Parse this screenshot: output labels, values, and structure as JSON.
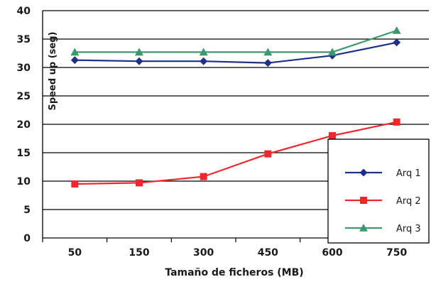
{
  "chart_data": {
    "type": "line",
    "title": "",
    "xlabel": "Tamaño de ficheros (MB)",
    "ylabel": "Speed up (seg)",
    "categories": [
      "50",
      "150",
      "300",
      "450",
      "600",
      "750"
    ],
    "ylim": [
      0,
      40
    ],
    "yticks": [
      "0",
      "5",
      "10",
      "15",
      "20",
      "25",
      "30",
      "35",
      "40"
    ],
    "grid": "horizontal",
    "legend_position": "bottom-right",
    "series": [
      {
        "name": "Arq 1",
        "values": [
          31.3,
          31.1,
          31.1,
          30.8,
          32.1,
          34.4
        ],
        "color": "#1f2f8a",
        "marker": "diamond"
      },
      {
        "name": "Arq 2",
        "values": [
          9.5,
          9.7,
          10.8,
          14.8,
          18.0,
          20.4
        ],
        "color": "#f0282d",
        "marker": "square"
      },
      {
        "name": "Arq 3",
        "values": [
          32.7,
          32.7,
          32.7,
          32.7,
          32.7,
          36.5
        ],
        "color": "#3a9a6e",
        "marker": "triangle"
      }
    ]
  }
}
